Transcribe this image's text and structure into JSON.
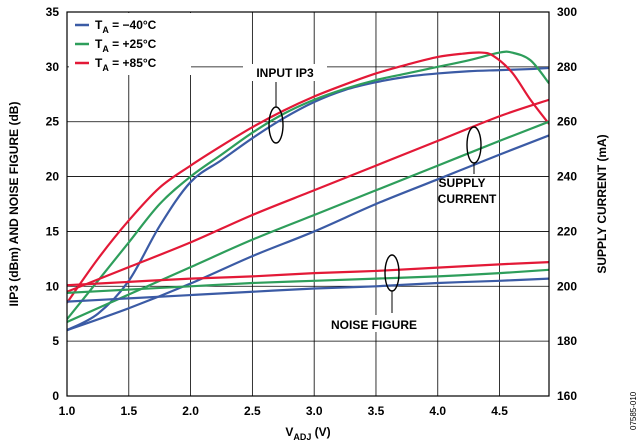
{
  "chart_data": {
    "type": "line",
    "xlabel": "V",
    "xlabel_sub": "ADJ",
    "xlabel_unit": " (V)",
    "ylabel_left": "IIP3 (dBm) AND NOISE FIGURE (dB)",
    "ylabel_right": "SUPPLY CURRENT (mA)",
    "xlim": [
      1.0,
      4.9
    ],
    "ylim_left": [
      0,
      35
    ],
    "ylim_right": [
      160,
      300
    ],
    "x_ticks": [
      1.0,
      1.5,
      2.0,
      2.5,
      3.0,
      3.5,
      4.0,
      4.5
    ],
    "x_tick_labels": [
      "1.0",
      "1.5",
      "2.0",
      "2.5",
      "3.0",
      "3.5",
      "4.0",
      "4.5"
    ],
    "y_left_ticks": [
      0,
      5,
      10,
      15,
      20,
      25,
      30,
      35
    ],
    "y_left_tick_labels": [
      "0",
      "5",
      "10",
      "15",
      "20",
      "25",
      "30",
      "35"
    ],
    "y_right_ticks": [
      160,
      180,
      200,
      220,
      240,
      260,
      280,
      300
    ],
    "y_right_tick_labels": [
      "160",
      "180",
      "200",
      "220",
      "240",
      "260",
      "280",
      "300"
    ],
    "grid": true,
    "legend": {
      "position": "top-left",
      "items": [
        {
          "prefix": "T",
          "sub": "A",
          "text": " = −40°C",
          "color": "#3B5BA5"
        },
        {
          "prefix": "T",
          "sub": "A",
          "text": " = +25°C",
          "color": "#2E9E5B"
        },
        {
          "prefix": "T",
          "sub": "A",
          "text": " = +85°C",
          "color": "#E31937"
        }
      ]
    },
    "annotations": {
      "input_ip3": "INPUT IP3",
      "supply_current_1": "SUPPLY",
      "supply_current_2": "CURRENT",
      "noise_figure": "NOISE FIGURE"
    },
    "figure_id": "07585-010",
    "series": [
      {
        "group": "input_ip3",
        "temp": "−40°C",
        "color": "#3B5BA5",
        "axis": "left",
        "x": [
          1.0,
          1.25,
          1.5,
          1.75,
          2.0,
          2.25,
          2.5,
          2.75,
          3.0,
          3.25,
          3.5,
          3.75,
          4.0,
          4.25,
          4.5,
          4.75,
          4.9
        ],
        "y": [
          6,
          7.5,
          10.5,
          15.5,
          19.5,
          21.5,
          23.5,
          25.3,
          26.8,
          27.9,
          28.6,
          29.1,
          29.4,
          29.6,
          29.7,
          29.8,
          29.9
        ]
      },
      {
        "group": "input_ip3",
        "temp": "+25°C",
        "color": "#2E9E5B",
        "axis": "left",
        "x": [
          1.0,
          1.25,
          1.5,
          1.75,
          2.0,
          2.25,
          2.5,
          2.75,
          3.0,
          3.25,
          3.5,
          3.75,
          4.0,
          4.25,
          4.5,
          4.6,
          4.75,
          4.9
        ],
        "y": [
          7.0,
          10.5,
          14.0,
          17.5,
          20.0,
          22.0,
          24.0,
          25.7,
          27.0,
          28.0,
          28.8,
          29.4,
          30.0,
          30.6,
          31.3,
          31.3,
          30.6,
          28.5
        ]
      },
      {
        "group": "input_ip3",
        "temp": "+85°C",
        "color": "#E31937",
        "axis": "left",
        "x": [
          1.0,
          1.25,
          1.5,
          1.75,
          2.0,
          2.25,
          2.5,
          2.75,
          3.0,
          3.25,
          3.5,
          3.75,
          4.0,
          4.2,
          4.35,
          4.45,
          4.6,
          4.75,
          4.9
        ],
        "y": [
          8.5,
          12.5,
          16.0,
          19.0,
          21.0,
          22.8,
          24.5,
          26.0,
          27.3,
          28.4,
          29.4,
          30.2,
          30.9,
          31.2,
          31.3,
          31.0,
          29.5,
          27.0,
          24.8
        ]
      },
      {
        "group": "supply_current",
        "temp": "−40°C",
        "color": "#3B5BA5",
        "axis": "right",
        "x": [
          1.0,
          1.5,
          2.0,
          2.5,
          3.0,
          3.5,
          4.0,
          4.5,
          4.9
        ],
        "y": [
          184,
          192,
          201,
          211,
          220,
          230,
          239,
          248,
          255
        ]
      },
      {
        "group": "supply_current",
        "temp": "+25°C",
        "color": "#2E9E5B",
        "axis": "right",
        "x": [
          1.0,
          1.5,
          2.0,
          2.5,
          3.0,
          3.5,
          4.0,
          4.5,
          4.9
        ],
        "y": [
          187,
          197,
          207,
          217,
          226,
          235,
          244,
          253,
          260
        ]
      },
      {
        "group": "supply_current",
        "temp": "+85°C",
        "color": "#E31937",
        "axis": "right",
        "x": [
          1.0,
          1.5,
          2.0,
          2.5,
          3.0,
          3.5,
          4.0,
          4.5,
          4.9
        ],
        "y": [
          198,
          207,
          216,
          226,
          235,
          244,
          253,
          262,
          268
        ]
      },
      {
        "group": "noise_figure",
        "temp": "−40°C",
        "color": "#3B5BA5",
        "axis": "left",
        "x": [
          1.0,
          1.5,
          2.0,
          2.5,
          3.0,
          3.5,
          4.0,
          4.5,
          4.9
        ],
        "y": [
          8.6,
          8.9,
          9.2,
          9.5,
          9.8,
          10.0,
          10.3,
          10.5,
          10.7
        ]
      },
      {
        "group": "noise_figure",
        "temp": "+25°C",
        "color": "#2E9E5B",
        "axis": "left",
        "x": [
          1.0,
          1.5,
          2.0,
          2.5,
          3.0,
          3.5,
          4.0,
          4.5,
          4.9
        ],
        "y": [
          9.4,
          9.7,
          10.0,
          10.3,
          10.5,
          10.7,
          10.9,
          11.2,
          11.5
        ]
      },
      {
        "group": "noise_figure",
        "temp": "+85°C",
        "color": "#E31937",
        "axis": "left",
        "x": [
          1.0,
          1.5,
          2.0,
          2.5,
          3.0,
          3.5,
          4.0,
          4.5,
          4.9
        ],
        "y": [
          10.1,
          10.4,
          10.7,
          10.9,
          11.2,
          11.4,
          11.7,
          12.0,
          12.2
        ]
      }
    ]
  }
}
